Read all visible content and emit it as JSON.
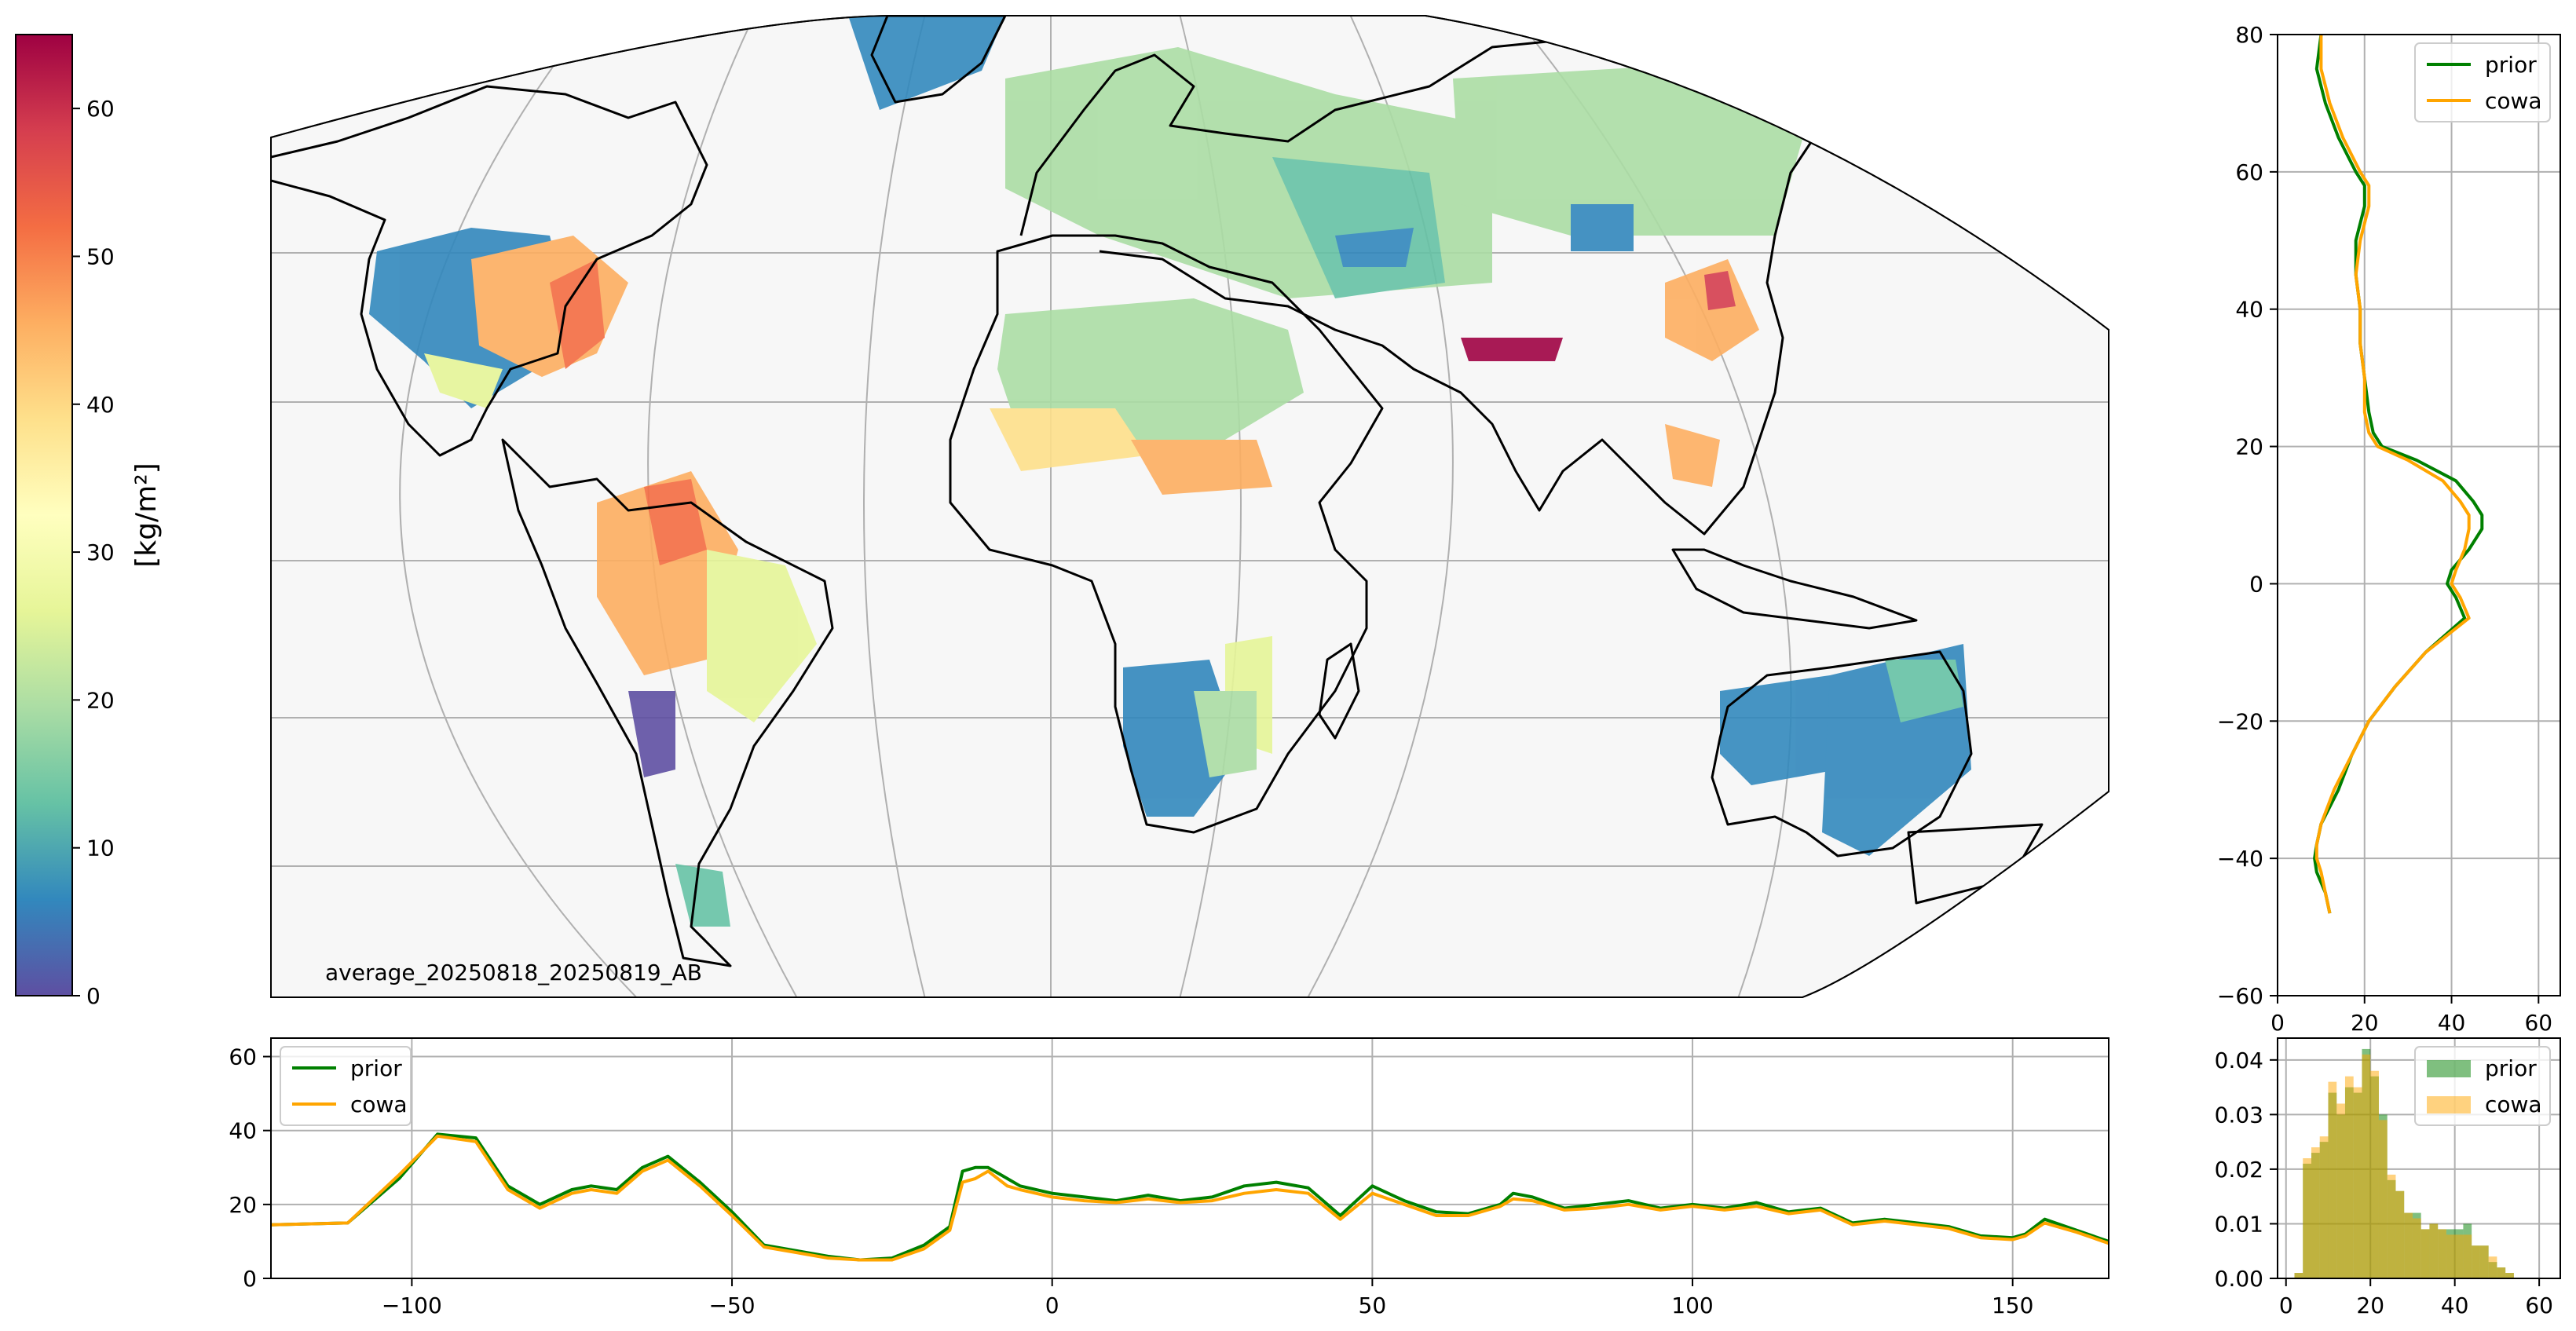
{
  "map": {
    "caption": "average_20250818_20250819_AB"
  },
  "colorbar": {
    "label": "[kg/m²]",
    "ticks": [
      "0",
      "10",
      "20",
      "30",
      "40",
      "50",
      "60"
    ],
    "range": [
      0,
      65
    ],
    "colormap": "Spectral_r",
    "colors": [
      "#5e4fa2",
      "#3288bd",
      "#66c2a5",
      "#abdda4",
      "#e6f598",
      "#ffffbf",
      "#fee08b",
      "#fdae61",
      "#f46d43",
      "#d53e4f",
      "#9e0142"
    ]
  },
  "chart_data": [
    {
      "type": "line",
      "title": "",
      "xlabel": "",
      "ylabel": "",
      "xlim": [
        -122,
        165
      ],
      "ylim": [
        0,
        65
      ],
      "xticks": [
        "−100",
        "−50",
        "0",
        "50",
        "100",
        "150"
      ],
      "yticks": [
        "0",
        "20",
        "40",
        "60"
      ],
      "grid": true,
      "legend": "top-left",
      "x": [
        -122,
        -110,
        -102,
        -96,
        -90,
        -85,
        -80,
        -75,
        -72,
        -68,
        -64,
        -60,
        -55,
        -50,
        -45,
        -40,
        -35,
        -30,
        -25,
        -20,
        -16,
        -14,
        -12,
        -10,
        -7,
        -5,
        0,
        5,
        10,
        15,
        20,
        25,
        30,
        35,
        40,
        45,
        50,
        55,
        60,
        65,
        70,
        72,
        75,
        80,
        85,
        90,
        95,
        100,
        105,
        110,
        115,
        120,
        125,
        130,
        135,
        140,
        145,
        150,
        152,
        155,
        160,
        165
      ],
      "series": [
        {
          "name": "prior",
          "color": "#008000",
          "values": [
            14.5,
            15,
            27,
            39,
            38,
            25,
            20,
            24,
            25,
            24,
            30,
            33,
            26,
            18,
            9,
            7.5,
            6,
            5,
            5.5,
            9,
            14,
            29,
            30,
            30,
            27,
            25,
            23,
            22,
            21,
            22.5,
            21,
            22,
            25,
            26,
            24.5,
            17,
            25,
            21,
            18,
            17.5,
            20,
            23,
            22,
            19,
            20,
            21,
            19,
            20,
            19,
            20.5,
            18,
            19,
            15,
            16,
            15,
            14,
            11.5,
            11,
            12,
            16,
            13,
            10
          ]
        },
        {
          "name": "cowa",
          "color": "#ffa500",
          "values": [
            14.5,
            15,
            28,
            38.5,
            37,
            24,
            19,
            23,
            24,
            23,
            29,
            32,
            25,
            17,
            8.5,
            7,
            5.5,
            5,
            5,
            8,
            13,
            26,
            27,
            29,
            25,
            24,
            22,
            21,
            20.5,
            21.5,
            20.5,
            21,
            23,
            24,
            23,
            16,
            23,
            20,
            17,
            17,
            19.5,
            21.5,
            21,
            18.5,
            19,
            20,
            18.5,
            19.5,
            18.5,
            19.5,
            17.5,
            18.5,
            14.5,
            15.5,
            14.5,
            13.5,
            11,
            10.5,
            11.5,
            15,
            12.5,
            9.5
          ]
        }
      ]
    },
    {
      "type": "line",
      "orientation": "vertical",
      "title": "",
      "xlabel": "",
      "ylabel": "",
      "xlim": [
        0,
        65
      ],
      "ylim": [
        -60,
        80
      ],
      "xticks": [
        "0",
        "20",
        "40",
        "60"
      ],
      "yticks": [
        "−60",
        "−40",
        "−20",
        "0",
        "20",
        "40",
        "60",
        "80"
      ],
      "grid": true,
      "legend": "top-right",
      "lat": [
        -48,
        -45,
        -42,
        -40,
        -38,
        -35,
        -30,
        -25,
        -20,
        -15,
        -10,
        -5,
        -2,
        0,
        2,
        5,
        8,
        10,
        12,
        15,
        18,
        20,
        22,
        25,
        30,
        35,
        40,
        45,
        50,
        55,
        58,
        60,
        65,
        70,
        75,
        80
      ],
      "series": [
        {
          "name": "prior",
          "color": "#008000",
          "values": [
            12,
            11,
            9,
            8.5,
            9,
            10,
            14,
            17,
            21,
            27,
            34,
            43,
            41,
            39,
            40,
            44,
            47,
            47,
            45,
            41,
            32,
            24,
            22,
            21,
            20,
            19,
            19,
            18,
            18,
            20,
            20,
            18,
            14,
            11,
            9,
            10
          ]
        },
        {
          "name": "cowa",
          "color": "#ffa500",
          "values": [
            12,
            11,
            10,
            9,
            9,
            10,
            13,
            17,
            21,
            27,
            34,
            44,
            42,
            40,
            41,
            43,
            44,
            44,
            42,
            38,
            30,
            23,
            21,
            20,
            20,
            19,
            19,
            18,
            19,
            21,
            21,
            19,
            15,
            12,
            10,
            10
          ]
        }
      ]
    },
    {
      "type": "bar",
      "title": "",
      "xlabel": "",
      "ylabel": "",
      "xlim": [
        -2,
        65
      ],
      "ylim": [
        0,
        0.044
      ],
      "xticks": [
        "0",
        "20",
        "40",
        "60"
      ],
      "yticks": [
        "0.00",
        "0.01",
        "0.02",
        "0.03",
        "0.04"
      ],
      "grid": true,
      "legend": "top-right",
      "bin_width": 2,
      "bin_starts": [
        2,
        4,
        6,
        8,
        10,
        12,
        14,
        16,
        18,
        20,
        22,
        24,
        26,
        28,
        30,
        32,
        34,
        36,
        38,
        40,
        42,
        44,
        46,
        48,
        50,
        52,
        54
      ],
      "series": [
        {
          "name": "prior",
          "color": "#008000",
          "values": [
            0.001,
            0.021,
            0.023,
            0.025,
            0.034,
            0.03,
            0.035,
            0.034,
            0.042,
            0.037,
            0.03,
            0.018,
            0.016,
            0.012,
            0.012,
            0.009,
            0.01,
            0.009,
            0.009,
            0.009,
            0.01,
            0.006,
            0.006,
            0.003,
            0.002,
            0.001,
            0.0
          ]
        },
        {
          "name": "cowa",
          "color": "#ffa500",
          "values": [
            0.001,
            0.022,
            0.024,
            0.026,
            0.036,
            0.032,
            0.037,
            0.035,
            0.041,
            0.038,
            0.029,
            0.019,
            0.016,
            0.012,
            0.011,
            0.009,
            0.01,
            0.009,
            0.008,
            0.008,
            0.008,
            0.006,
            0.006,
            0.004,
            0.002,
            0.001,
            0.0
          ]
        }
      ]
    }
  ]
}
